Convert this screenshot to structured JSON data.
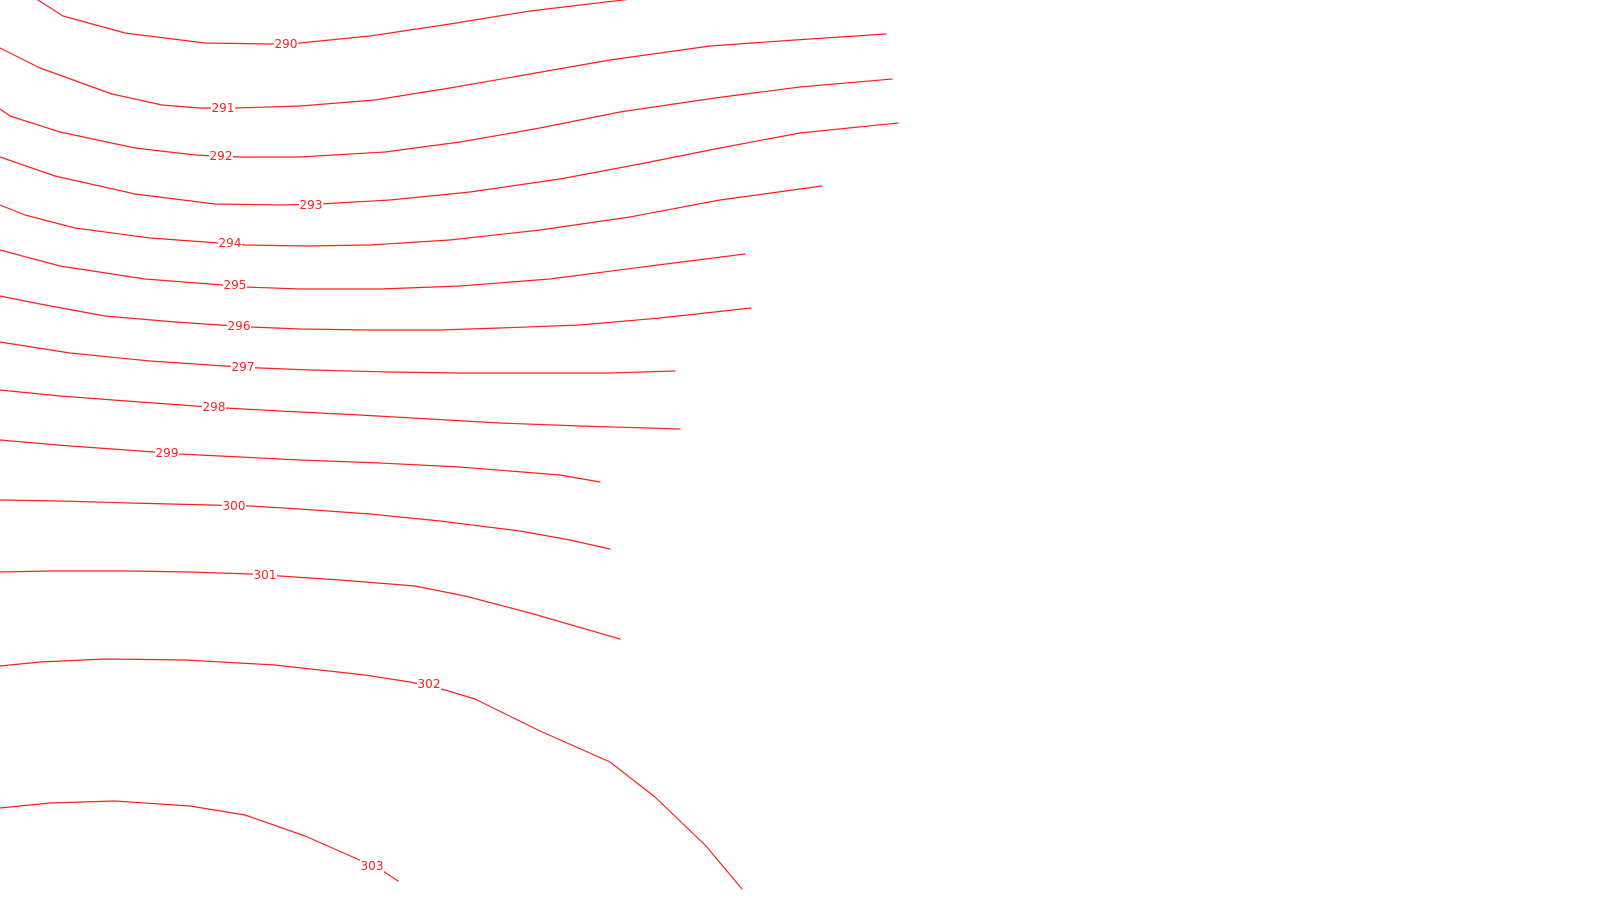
{
  "map": {
    "line_color": "#ff1f1f",
    "label_color": "#ff1f1f",
    "contours": [
      {
        "label": "290"
      },
      {
        "label": "291"
      },
      {
        "label": "292"
      },
      {
        "label": "293"
      },
      {
        "label": "294"
      },
      {
        "label": "295"
      },
      {
        "label": "296"
      },
      {
        "label": "297"
      },
      {
        "label": "298"
      },
      {
        "label": "299"
      },
      {
        "label": "300"
      },
      {
        "label": "301"
      },
      {
        "label": "302"
      },
      {
        "label": "303"
      }
    ]
  }
}
